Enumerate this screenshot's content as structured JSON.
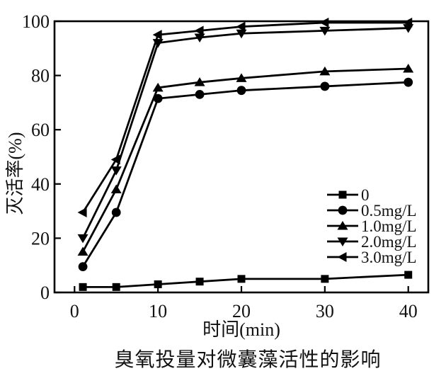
{
  "figure": {
    "caption": "臭氧投量对微囊藻活性的影响"
  },
  "chart_data": {
    "type": "line",
    "title": "",
    "xlabel": "时间(min)",
    "ylabel": "灭活率(%)",
    "x": [
      1,
      5,
      10,
      15,
      20,
      30,
      40
    ],
    "xlim": [
      -2.4,
      42.4
    ],
    "ylim": [
      0,
      100
    ],
    "xticks": [
      0,
      10,
      20,
      30,
      40
    ],
    "yticks": [
      0,
      20,
      40,
      60,
      80,
      100
    ],
    "grid": false,
    "legend_position": "inside-right",
    "series": [
      {
        "name": "0",
        "marker": "square",
        "color": "#000000",
        "values": [
          2,
          2,
          3,
          4,
          5,
          5,
          6.5
        ]
      },
      {
        "name": "0.5mg/L",
        "marker": "circle",
        "color": "#000000",
        "values": [
          9.5,
          29.5,
          71.5,
          73,
          74.5,
          76,
          77.5
        ]
      },
      {
        "name": "1.0mg/L",
        "marker": "triangle-up",
        "color": "#000000",
        "values": [
          15,
          38,
          75.5,
          77.5,
          79,
          81.5,
          82.5
        ]
      },
      {
        "name": "2.0mg/L",
        "marker": "triangle-down",
        "color": "#000000",
        "values": [
          20,
          45,
          92,
          94,
          95.5,
          96.5,
          97.5
        ]
      },
      {
        "name": "3.0mg/L",
        "marker": "triangle-left",
        "color": "#000000",
        "values": [
          29.5,
          49,
          95,
          96.5,
          98,
          99.5,
          99.5
        ]
      }
    ]
  },
  "colors": {
    "line": "#000000",
    "text": "#111111",
    "background": "#ffffff"
  }
}
